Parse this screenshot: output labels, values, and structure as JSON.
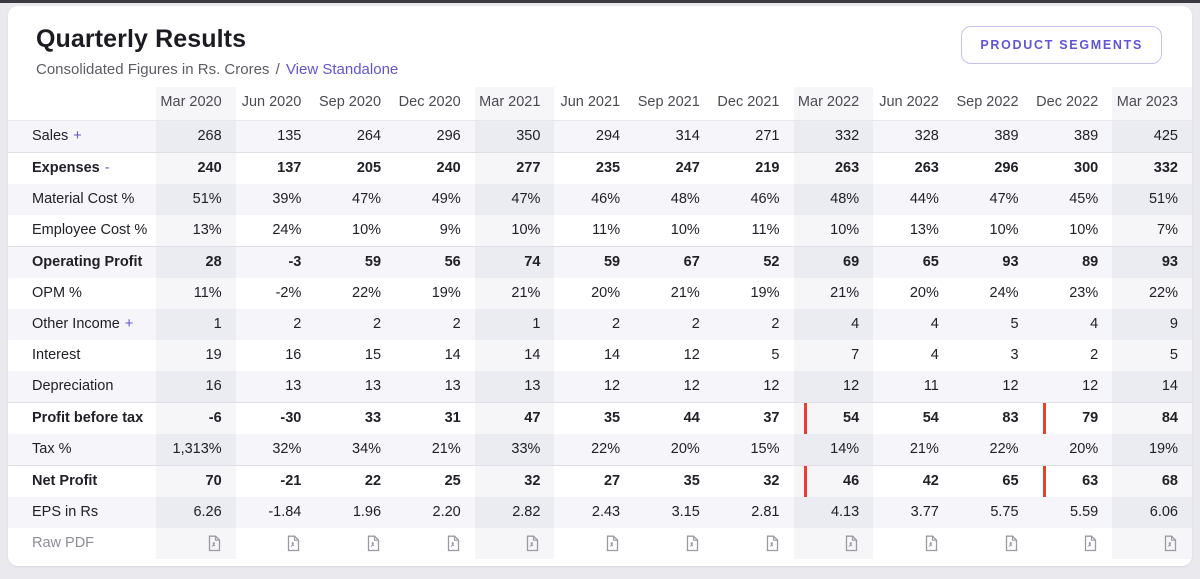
{
  "header": {
    "title": "Quarterly Results",
    "subtitle_prefix": "Consolidated Figures in Rs. Crores",
    "separator": "/",
    "view_link": "View Standalone",
    "segments_button": "PRODUCT SEGMENTS"
  },
  "colors": {
    "accent": "#6155d4",
    "accent_border": "#c6c2ec",
    "highlight": "#e6402e",
    "stripe": "#f6f6fa",
    "strong_border": "#dfdfe6"
  },
  "icons": {
    "pdf": "pdf-file-icon"
  },
  "table": {
    "columns": [
      "Mar 2020",
      "Jun 2020",
      "Sep 2020",
      "Dec 2020",
      "Mar 2021",
      "Jun 2021",
      "Sep 2021",
      "Dec 2021",
      "Mar 2022",
      "Jun 2022",
      "Sep 2022",
      "Dec 2022",
      "Mar 2023"
    ],
    "mar_cols": [
      0,
      4,
      8,
      12
    ],
    "rows": [
      {
        "label": "Sales",
        "suffix": "+",
        "bold": false,
        "values": [
          "268",
          "135",
          "264",
          "296",
          "350",
          "294",
          "314",
          "271",
          "332",
          "328",
          "389",
          "389",
          "425"
        ]
      },
      {
        "label": "Expenses",
        "suffix": "-",
        "bold": true,
        "values": [
          "240",
          "137",
          "205",
          "240",
          "277",
          "235",
          "247",
          "219",
          "263",
          "263",
          "296",
          "300",
          "332"
        ]
      },
      {
        "label": "Material Cost %",
        "bold": false,
        "values": [
          "51%",
          "39%",
          "47%",
          "49%",
          "47%",
          "46%",
          "48%",
          "46%",
          "48%",
          "44%",
          "47%",
          "45%",
          "51%"
        ]
      },
      {
        "label": "Employee Cost %",
        "bold": false,
        "values": [
          "13%",
          "24%",
          "10%",
          "9%",
          "10%",
          "11%",
          "10%",
          "11%",
          "10%",
          "13%",
          "10%",
          "10%",
          "7%"
        ]
      },
      {
        "label": "Operating Profit",
        "bold": true,
        "values": [
          "28",
          "-3",
          "59",
          "56",
          "74",
          "59",
          "67",
          "52",
          "69",
          "65",
          "93",
          "89",
          "93"
        ]
      },
      {
        "label": "OPM %",
        "bold": false,
        "values": [
          "11%",
          "-2%",
          "22%",
          "19%",
          "21%",
          "20%",
          "21%",
          "19%",
          "21%",
          "20%",
          "24%",
          "23%",
          "22%"
        ]
      },
      {
        "label": "Other Income",
        "suffix": "+",
        "bold": false,
        "values": [
          "1",
          "2",
          "2",
          "2",
          "1",
          "2",
          "2",
          "2",
          "4",
          "4",
          "5",
          "4",
          "9"
        ]
      },
      {
        "label": "Interest",
        "bold": false,
        "values": [
          "19",
          "16",
          "15",
          "14",
          "14",
          "14",
          "12",
          "5",
          "7",
          "4",
          "3",
          "2",
          "5"
        ]
      },
      {
        "label": "Depreciation",
        "bold": false,
        "values": [
          "16",
          "13",
          "13",
          "13",
          "13",
          "12",
          "12",
          "12",
          "12",
          "11",
          "12",
          "12",
          "14"
        ]
      },
      {
        "label": "Profit before tax",
        "bold": true,
        "values": [
          "-6",
          "-30",
          "33",
          "31",
          "47",
          "35",
          "44",
          "37",
          "54",
          "54",
          "83",
          "79",
          "84"
        ]
      },
      {
        "label": "Tax %",
        "bold": false,
        "values": [
          "1,313%",
          "32%",
          "34%",
          "21%",
          "33%",
          "22%",
          "20%",
          "15%",
          "14%",
          "21%",
          "22%",
          "20%",
          "19%"
        ]
      },
      {
        "label": "Net Profit",
        "bold": true,
        "values": [
          "70",
          "-21",
          "22",
          "25",
          "32",
          "27",
          "35",
          "32",
          "46",
          "42",
          "65",
          "63",
          "68"
        ]
      },
      {
        "label": "EPS in Rs",
        "bold": false,
        "values": [
          "6.26",
          "-1.84",
          "1.96",
          "2.20",
          "2.82",
          "2.43",
          "3.15",
          "2.81",
          "4.13",
          "3.77",
          "5.75",
          "5.59",
          "6.06"
        ]
      },
      {
        "label": "Raw PDF",
        "bold": false,
        "type": "pdf"
      }
    ],
    "highlights": [
      {
        "row": 9,
        "col": 8,
        "part": "single"
      },
      {
        "row": 9,
        "col": 11,
        "part": "left"
      },
      {
        "row": 9,
        "col": 12,
        "part": "right"
      },
      {
        "row": 11,
        "col": 8,
        "part": "single"
      },
      {
        "row": 11,
        "col": 11,
        "part": "left"
      },
      {
        "row": 11,
        "col": 12,
        "part": "right"
      }
    ]
  }
}
